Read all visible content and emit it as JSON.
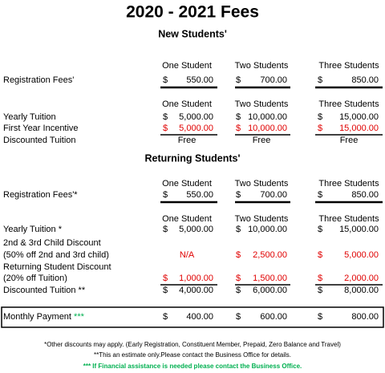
{
  "title": "2020 - 2021 Fees",
  "column_headers": [
    "One Student",
    "Two Students",
    "Three Students"
  ],
  "new_students": {
    "heading": "New Students'",
    "registration": {
      "label": "Registration Fees'",
      "values": [
        [
          "$",
          "550.00"
        ],
        [
          "$",
          "700.00"
        ],
        [
          "$",
          "850.00"
        ]
      ]
    },
    "yearly_tuition": {
      "label": "Yearly Tuition",
      "values": [
        [
          "$",
          "5,000.00"
        ],
        [
          "$",
          "10,000.00"
        ],
        [
          "$",
          "15,000.00"
        ]
      ]
    },
    "first_year_incentive": {
      "label": "First Year Incentive",
      "color": "#e00000",
      "values": [
        [
          "$",
          "5,000.00"
        ],
        [
          "$",
          "10,000.00"
        ],
        [
          "$",
          "15,000.00"
        ]
      ]
    },
    "discounted_tuition": {
      "label": "Discounted Tuition",
      "values": [
        "Free",
        "Free",
        "Free"
      ]
    }
  },
  "returning_students": {
    "heading": "Returning Students'",
    "registration": {
      "label": "Registration Fees'*",
      "values": [
        [
          "$",
          "550.00"
        ],
        [
          "$",
          "700.00"
        ],
        [
          "$",
          "850.00"
        ]
      ]
    },
    "yearly_tuition": {
      "label": "Yearly Tuition *",
      "values": [
        [
          "$",
          "5,000.00"
        ],
        [
          "$",
          "10,000.00"
        ],
        [
          "$",
          "15,000.00"
        ]
      ]
    },
    "child_discount": {
      "label": [
        "2nd & 3rd Child Discount",
        "(50% off 2nd and 3rd child)"
      ],
      "color": "#e00000",
      "values": [
        "N/A",
        [
          "$",
          "2,500.00"
        ],
        [
          "$",
          "5,000.00"
        ]
      ]
    },
    "returning_discount": {
      "label": [
        "Returning Student Discount",
        "(20% off Tuition)"
      ],
      "color": "#e00000",
      "values": [
        [
          "$",
          "1,000.00"
        ],
        [
          "$",
          "1,500.00"
        ],
        [
          "$",
          "2,000.00"
        ]
      ]
    },
    "discounted_tuition": {
      "label": "Discounted Tuition **",
      "values": [
        [
          "$",
          "4,000.00"
        ],
        [
          "$",
          "6,000.00"
        ],
        [
          "$",
          "8,000.00"
        ]
      ]
    }
  },
  "monthly_payment": {
    "label": "Monthly Payment",
    "marker": "***",
    "marker_color": "#00b050",
    "values": [
      [
        "$",
        "400.00"
      ],
      [
        "$",
        "600.00"
      ],
      [
        "$",
        "800.00"
      ]
    ]
  },
  "footnotes": [
    "*Other discounts may apply. (Early Registration, Constituent Member, Prepaid, Zero Balance and Travel)",
    "**This  an estimate only.Please contact the Business Office for details.",
    "*** If Financial assistance is needed please contact the Business Office."
  ],
  "footnote_highlight_color": "#00b050"
}
